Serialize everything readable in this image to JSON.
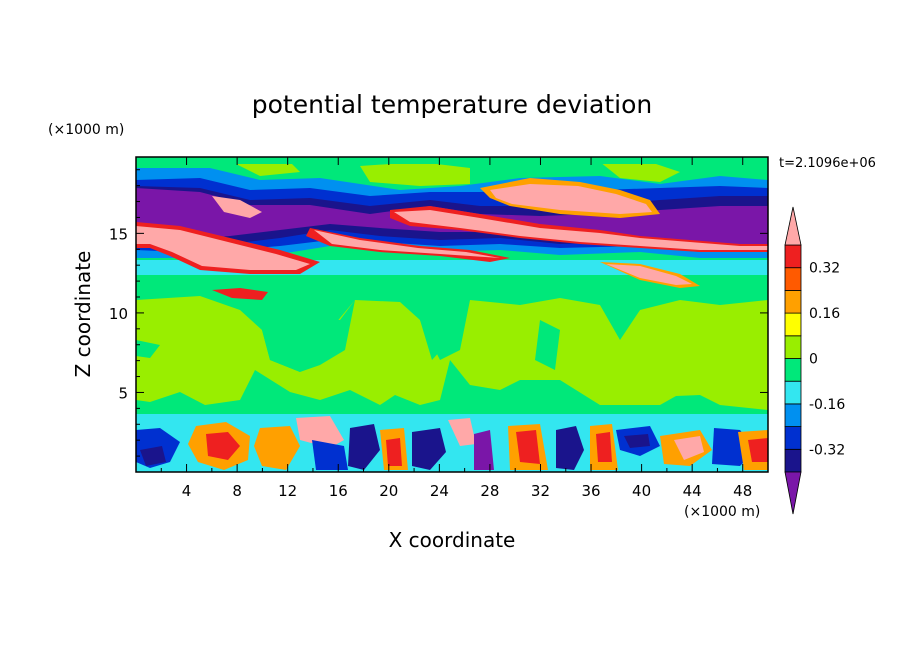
{
  "chart_data": {
    "type": "heatmap",
    "title": "potential temperature deviation",
    "xlabel": "X coordinate",
    "ylabel": "Z coordinate",
    "x_unit_label": "(×1000 m)",
    "y_unit_label": "(×1000 m)",
    "time_label": "t=2.1096e+06",
    "xlim": [
      0,
      50
    ],
    "ylim": [
      0,
      19.8
    ],
    "x_ticks": [
      4,
      8,
      12,
      16,
      20,
      24,
      28,
      32,
      36,
      40,
      44,
      48
    ],
    "y_ticks": [
      5,
      10,
      15
    ],
    "x_tick_labels": [
      "4",
      "8",
      "12",
      "16",
      "20",
      "24",
      "28",
      "32",
      "36",
      "40",
      "44",
      "48"
    ],
    "y_tick_labels": [
      "5",
      "10",
      "15"
    ],
    "colorbar": {
      "levels": [
        -0.4,
        -0.32,
        -0.24,
        -0.16,
        -0.08,
        0,
        0.08,
        0.16,
        0.24,
        0.32,
        0.4
      ],
      "colors": [
        "#7a16a8",
        "#1a148c",
        "#0030d0",
        "#0090f0",
        "#33e6f0",
        "#00e87a",
        "#99ee00",
        "#ffff00",
        "#ffa000",
        "#ff5a00",
        "#ee2020",
        "#ffa8a8"
      ],
      "labels": [
        "0.32",
        "0.16",
        "0",
        "-0.16",
        "-0.32"
      ],
      "label_values": [
        0.32,
        0.16,
        0,
        -0.16,
        -0.32
      ]
    },
    "bands": [
      {
        "z_range": [
          0,
          3.6
        ],
        "description_value": "strong alternating warm/cold convective cells"
      },
      {
        "z_range": [
          3.6,
          11
        ],
        "value": 0.04
      },
      {
        "z_range": [
          11,
          12.8
        ],
        "value": -0.06
      },
      {
        "z_range": [
          12.8,
          18.8
        ],
        "description_value": "alternating cold (-0.4) and warm (+0.4) tilted layers"
      },
      {
        "z_range": [
          18.8,
          19.8
        ],
        "value": 0.0
      }
    ]
  }
}
